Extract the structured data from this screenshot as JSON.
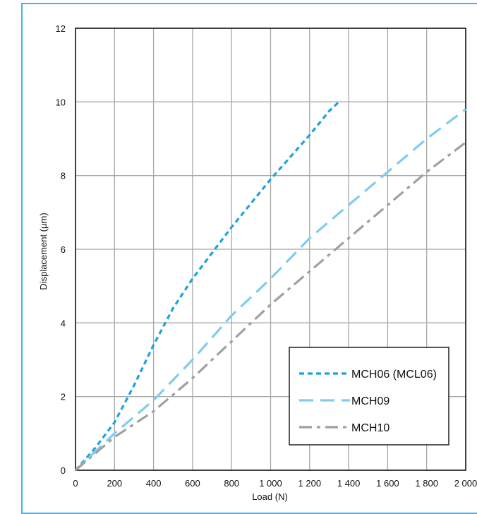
{
  "chart_data": {
    "type": "line",
    "xlabel": "Load (N)",
    "ylabel": "Displacement (µm)",
    "xlim": [
      0,
      2000
    ],
    "ylim": [
      0,
      12
    ],
    "x_ticks": [
      0,
      200,
      400,
      600,
      800,
      1000,
      1200,
      1400,
      1600,
      1800,
      2000
    ],
    "x_tick_labels": [
      "0",
      "200",
      "400",
      "600",
      "800",
      "1 000",
      "1 200",
      "1 400",
      "1 600",
      "1 800",
      "2 000"
    ],
    "y_ticks": [
      0,
      2,
      4,
      6,
      8,
      10,
      12
    ],
    "y_tick_labels": [
      "0",
      "2",
      "4",
      "6",
      "8",
      "10",
      "12"
    ],
    "grid": true,
    "legend_position": "bottom-right",
    "series": [
      {
        "name": "MCH06 (MCL06)",
        "color": "#1aa3dd",
        "dash": "short",
        "x": [
          0,
          100,
          200,
          300,
          400,
          500,
          600,
          700,
          800,
          900,
          1000,
          1100,
          1200,
          1300,
          1350
        ],
        "y": [
          0,
          0.6,
          1.3,
          2.3,
          3.4,
          4.4,
          5.2,
          5.9,
          6.6,
          7.25,
          7.9,
          8.5,
          9.1,
          9.75,
          10.0
        ]
      },
      {
        "name": "MCH09",
        "color": "#7fcdee",
        "dash": "long",
        "x": [
          0,
          200,
          400,
          600,
          800,
          1000,
          1200,
          1400,
          1600,
          1800,
          2000
        ],
        "y": [
          0,
          1.0,
          1.9,
          3.0,
          4.2,
          5.2,
          6.3,
          7.2,
          8.1,
          9.0,
          9.8
        ]
      },
      {
        "name": "MCH10",
        "color": "#a0a0a0",
        "dash": "dashdot",
        "x": [
          0,
          200,
          400,
          600,
          800,
          1000,
          1200,
          1400,
          1600,
          1800,
          2000
        ],
        "y": [
          0,
          0.9,
          1.6,
          2.5,
          3.5,
          4.5,
          5.4,
          6.3,
          7.2,
          8.1,
          8.9
        ]
      }
    ]
  }
}
